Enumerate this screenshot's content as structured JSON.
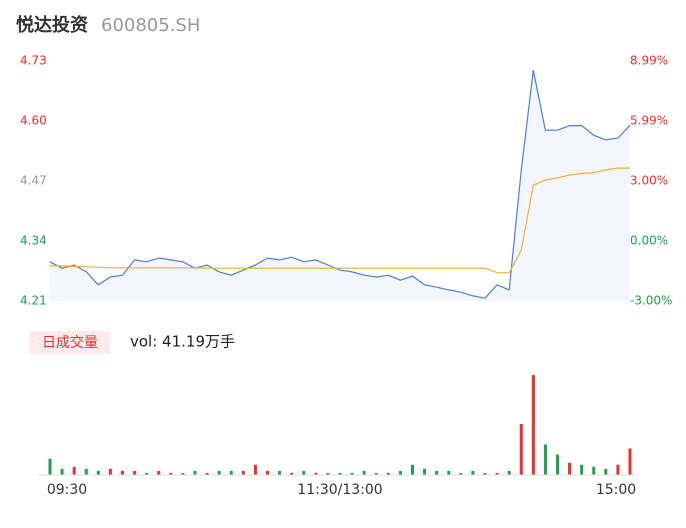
{
  "chart_data": {
    "type": "intraday",
    "title": "悦达投资",
    "subtitle": "600805.SH",
    "categories": [
      "09:30",
      null,
      null,
      null,
      null,
      null,
      null,
      null,
      null,
      null,
      null,
      null,
      null,
      null,
      null,
      null,
      null,
      null,
      null,
      null,
      null,
      null,
      null,
      null,
      "11:30/13:00",
      null,
      null,
      null,
      null,
      null,
      null,
      null,
      null,
      null,
      null,
      null,
      null,
      null,
      null,
      null,
      null,
      null,
      null,
      null,
      null,
      null,
      null,
      null,
      "15:00"
    ],
    "series": [
      {
        "color": "#4a7fe0",
        "values": [
          4.295,
          4.281,
          4.288,
          4.273,
          4.245,
          4.262,
          4.266,
          4.299,
          4.295,
          4.303,
          4.299,
          4.295,
          4.281,
          4.288,
          4.273,
          4.266,
          4.277,
          4.288,
          4.303,
          4.299,
          4.305,
          4.295,
          4.299,
          4.288,
          4.277,
          4.273,
          4.266,
          4.262,
          4.266,
          4.255,
          4.264,
          4.245,
          4.24,
          4.234,
          4.229,
          4.221,
          4.216,
          4.245,
          4.234,
          4.494,
          4.71,
          4.58,
          4.58,
          4.59,
          4.59,
          4.569,
          4.559,
          4.563,
          4.591
        ]
      },
      {
        "color": "#f0b030",
        "values": [
          4.286,
          4.286,
          4.285,
          4.284,
          4.283,
          4.282,
          4.282,
          4.282,
          4.282,
          4.282,
          4.282,
          4.282,
          4.282,
          4.281,
          4.281,
          4.281,
          4.281,
          4.281,
          4.281,
          4.281,
          4.281,
          4.281,
          4.281,
          4.281,
          4.281,
          4.281,
          4.281,
          4.281,
          4.281,
          4.281,
          4.281,
          4.281,
          4.281,
          4.281,
          4.281,
          4.281,
          4.281,
          4.271,
          4.271,
          4.32,
          4.461,
          4.472,
          4.477,
          4.483,
          4.486,
          4.488,
          4.494,
          4.498,
          4.498
        ]
      }
    ],
    "ylim": [
      4.21,
      4.73
    ],
    "yticks": [
      4.73,
      {
        "value": 4.6,
        "label": "4.60"
      },
      4.47,
      4.34,
      4.21
    ],
    "ytick_colors": [
      "#e8302c",
      "#e8302c",
      "#999999",
      "#1aa34a",
      "#1aa34a"
    ],
    "y2lim": [
      -3,
      8.99
    ],
    "y2ticks": [
      {
        "value": 8.99,
        "label": "8.99%"
      },
      {
        "value": 5.99,
        "label": "5.99%"
      },
      {
        "value": 3,
        "label": "3.00%"
      },
      {
        "value": 0,
        "label": "0.00%"
      },
      {
        "value": -3,
        "label": "-3.00%"
      }
    ],
    "volume": {
      "label": "日成交量",
      "summary": "vol: 41.19万手",
      "values": [
        0.8,
        0.3,
        0.4,
        0.3,
        0.2,
        0.3,
        0.2,
        0.2,
        0.1,
        0.2,
        0.1,
        0.1,
        0.2,
        0.1,
        0.2,
        0.2,
        0.2,
        0.5,
        0.2,
        0.2,
        0.1,
        0.2,
        0.1,
        0.1,
        0.1,
        0.1,
        0.2,
        0.1,
        0.1,
        0.2,
        0.5,
        0.3,
        0.2,
        0.2,
        0.1,
        0.2,
        0.1,
        0.1,
        0.2,
        2.5,
        4.9,
        1.5,
        1.0,
        0.6,
        0.5,
        0.4,
        0.3,
        0.5,
        1.3
      ],
      "colors": [
        "#1aa34a",
        "#1aa34a",
        "#e8302c",
        "#1aa34a",
        "#1aa34a",
        "#e8302c",
        "#e8302c",
        "#e8302c",
        "#1aa34a",
        "#e8302c",
        "#e8302c",
        "#1aa34a",
        "#1aa34a",
        "#e8302c",
        "#1aa34a",
        "#1aa34a",
        "#e8302c",
        "#e8302c",
        "#e8302c",
        "#1aa34a",
        "#e8302c",
        "#1aa34a",
        "#e8302c",
        "#1aa34a",
        "#1aa34a",
        "#1aa34a",
        "#1aa34a",
        "#1aa34a",
        "#e8302c",
        "#1aa34a",
        "#1aa34a",
        "#1aa34a",
        "#1aa34a",
        "#1aa34a",
        "#1aa34a",
        "#1aa34a",
        "#1aa34a",
        "#e8302c",
        "#1aa34a",
        "#e8302c",
        "#e8302c",
        "#1aa34a",
        "#1aa34a",
        "#e8302c",
        "#1aa34a",
        "#1aa34a",
        "#1aa34a",
        "#e8302c",
        "#e8302c"
      ],
      "ylim": [
        0,
        5
      ]
    }
  }
}
